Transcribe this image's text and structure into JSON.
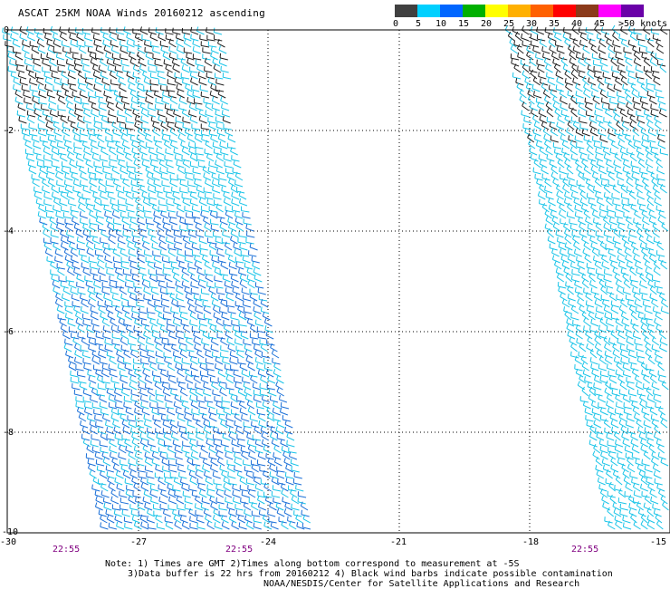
{
  "title": "ASCAT 25KM NOAA Winds 20160212 ascending",
  "colorbar": {
    "labels": [
      "0",
      "5",
      "10",
      "15",
      "20",
      "25",
      "30",
      "35",
      "40",
      "45",
      ">50 knots"
    ],
    "colors": [
      "#7f7f7f",
      "#00c8ff",
      "#0070ff",
      "#00b000",
      "#ffff00",
      "#ffb000",
      "#ff7000",
      "#ff0000",
      "#8b4513",
      "#ff00ff",
      "#7000a0"
    ]
  },
  "axes": {
    "lat_labels": [
      "0",
      "-2",
      "-4",
      "-6",
      "-8",
      "-10"
    ],
    "lon_labels": [
      "-30",
      "-27",
      "-24",
      "-21",
      "-18",
      "-15"
    ]
  },
  "pass_times": [
    "22:55",
    "22:55",
    "22:55"
  ],
  "notes": {
    "line1": "Note: 1) Times are GMT 2)Times along bottom correspond to measurement at -5S",
    "line2": "3)Data buffer is 22 hrs from 20160212 4) Black wind barbs indicate possible contamination",
    "line3": "NOAA/NESDIS/Center for Satellite Applications and Research"
  }
}
